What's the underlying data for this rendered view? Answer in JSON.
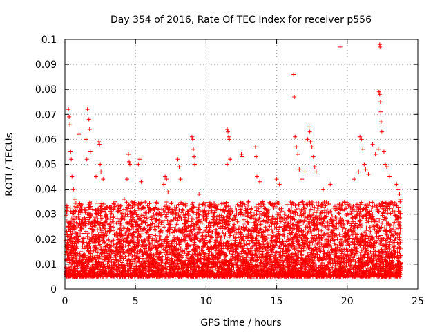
{
  "chart_data": {
    "type": "scatter",
    "title": "Day 354 of 2016, Rate Of TEC Index for receiver p556",
    "xlabel": "GPS time / hours",
    "ylabel": "ROTI / TECUs",
    "xlim": [
      0,
      25
    ],
    "ylim": [
      0,
      0.1
    ],
    "xticks": [
      0,
      5,
      10,
      15,
      20,
      25
    ],
    "yticks": [
      0,
      0.01,
      0.02,
      0.03,
      0.04,
      0.05,
      0.06,
      0.07,
      0.08,
      0.09,
      0.1
    ],
    "xtick_labels": [
      "0",
      "5",
      "10",
      "15",
      "20",
      "25"
    ],
    "ytick_labels": [
      "0",
      "0.01",
      "0.02",
      "0.03",
      "0.04",
      "0.05",
      "0.06",
      "0.07",
      "0.08",
      "0.09",
      "0.1"
    ],
    "grid": true,
    "marker": "+",
    "color": "#ff0000",
    "series": [
      {
        "name": "ROTI",
        "points": [
          [
            0.25,
            0.072
          ],
          [
            0.3,
            0.069
          ],
          [
            0.35,
            0.066
          ],
          [
            0.4,
            0.055
          ],
          [
            0.45,
            0.052
          ],
          [
            0.5,
            0.045
          ],
          [
            0.6,
            0.04
          ],
          [
            0.7,
            0.036
          ],
          [
            1.0,
            0.062
          ],
          [
            1.5,
            0.06
          ],
          [
            1.55,
            0.052
          ],
          [
            1.6,
            0.072
          ],
          [
            1.7,
            0.068
          ],
          [
            1.75,
            0.064
          ],
          [
            1.8,
            0.055
          ],
          [
            2.2,
            0.045
          ],
          [
            2.4,
            0.059
          ],
          [
            2.45,
            0.058
          ],
          [
            2.5,
            0.05
          ],
          [
            2.55,
            0.047
          ],
          [
            2.7,
            0.044
          ],
          [
            3.0,
            0.033
          ],
          [
            4.0,
            0.03
          ],
          [
            4.2,
            0.036
          ],
          [
            4.5,
            0.054
          ],
          [
            4.55,
            0.051
          ],
          [
            4.6,
            0.05
          ],
          [
            4.4,
            0.044
          ],
          [
            5.2,
            0.05
          ],
          [
            5.3,
            0.052
          ],
          [
            5.4,
            0.043
          ],
          [
            6.0,
            0.032
          ],
          [
            7.0,
            0.042
          ],
          [
            7.1,
            0.045
          ],
          [
            7.2,
            0.044
          ],
          [
            7.3,
            0.039
          ],
          [
            8.0,
            0.052
          ],
          [
            8.1,
            0.049
          ],
          [
            8.2,
            0.044
          ],
          [
            9.0,
            0.061
          ],
          [
            9.05,
            0.06
          ],
          [
            9.1,
            0.056
          ],
          [
            9.15,
            0.053
          ],
          [
            9.2,
            0.05
          ],
          [
            9.5,
            0.038
          ],
          [
            10.5,
            0.03
          ],
          [
            11.0,
            0.032
          ],
          [
            11.5,
            0.064
          ],
          [
            11.55,
            0.063
          ],
          [
            11.6,
            0.061
          ],
          [
            11.65,
            0.06
          ],
          [
            11.7,
            0.052
          ],
          [
            11.5,
            0.05
          ],
          [
            12.5,
            0.054
          ],
          [
            12.55,
            0.053
          ],
          [
            13.0,
            0.035
          ],
          [
            13.5,
            0.057
          ],
          [
            13.55,
            0.053
          ],
          [
            13.6,
            0.045
          ],
          [
            13.8,
            0.043
          ],
          [
            14.0,
            0.035
          ],
          [
            15.0,
            0.044
          ],
          [
            15.2,
            0.042
          ],
          [
            15.6,
            0.03
          ],
          [
            16.2,
            0.086
          ],
          [
            16.25,
            0.077
          ],
          [
            16.3,
            0.061
          ],
          [
            16.4,
            0.057
          ],
          [
            16.5,
            0.054
          ],
          [
            16.6,
            0.048
          ],
          [
            16.8,
            0.044
          ],
          [
            17.0,
            0.047
          ],
          [
            17.2,
            0.06
          ],
          [
            17.3,
            0.065
          ],
          [
            17.35,
            0.063
          ],
          [
            17.4,
            0.059
          ],
          [
            17.5,
            0.057
          ],
          [
            17.6,
            0.053
          ],
          [
            17.7,
            0.049
          ],
          [
            17.8,
            0.047
          ],
          [
            18.3,
            0.04
          ],
          [
            18.8,
            0.042
          ],
          [
            19.5,
            0.097
          ],
          [
            20.0,
            0.034
          ],
          [
            20.5,
            0.044
          ],
          [
            20.8,
            0.047
          ],
          [
            20.9,
            0.061
          ],
          [
            21.0,
            0.06
          ],
          [
            21.1,
            0.056
          ],
          [
            21.2,
            0.05
          ],
          [
            21.3,
            0.048
          ],
          [
            21.5,
            0.046
          ],
          [
            21.8,
            0.058
          ],
          [
            22.0,
            0.054
          ],
          [
            22.2,
            0.056
          ],
          [
            22.25,
            0.079
          ],
          [
            22.3,
            0.078
          ],
          [
            22.35,
            0.075
          ],
          [
            22.38,
            0.071
          ],
          [
            22.4,
            0.067
          ],
          [
            22.45,
            0.063
          ],
          [
            22.3,
            0.098
          ],
          [
            22.32,
            0.097
          ],
          [
            22.6,
            0.055
          ],
          [
            22.7,
            0.05
          ],
          [
            22.8,
            0.049
          ],
          [
            23.0,
            0.045
          ],
          [
            23.5,
            0.042
          ],
          [
            23.6,
            0.04
          ],
          [
            23.7,
            0.038
          ],
          [
            23.8,
            0.036
          ]
        ]
      }
    ],
    "dense_band": {
      "x_range": [
        0.05,
        23.8
      ],
      "y_floor": 0.005,
      "y_typical_max": 0.035,
      "count": 6500
    }
  }
}
